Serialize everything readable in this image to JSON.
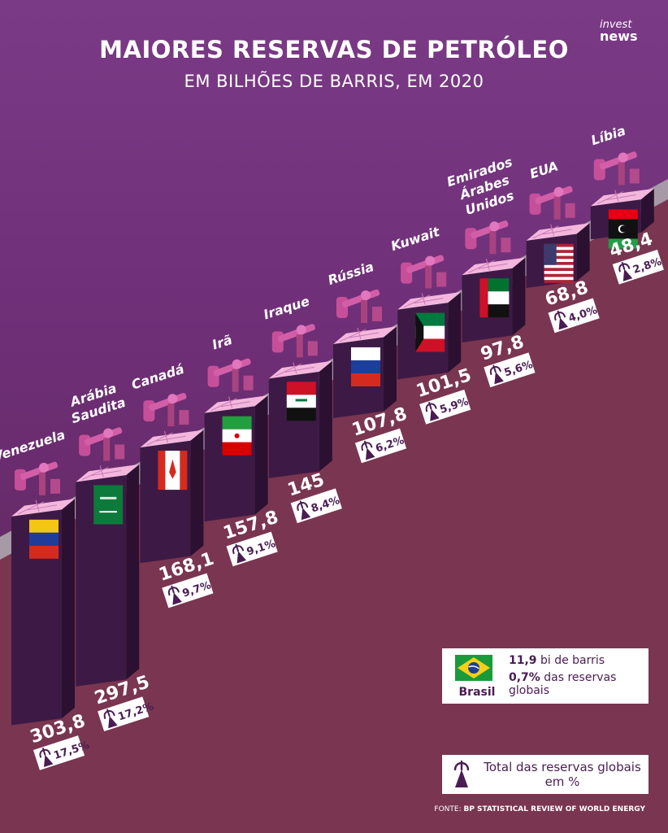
{
  "header": {
    "title": "MAIORES RESERVAS DE PETRÓLEO",
    "subtitle": "EM BILHÕES DE BARRIS, EM 2020",
    "logo_line1": "invest",
    "logo_line2": "news"
  },
  "chart_data": {
    "type": "bar",
    "title": "MAIORES RESERVAS DE PETRÓLEO",
    "subtitle": "EM BILHÕES DE BARRIS, EM 2020",
    "categories": [
      "Venezuela",
      "Arábia Saudita",
      "Canadá",
      "Irã",
      "Iraque",
      "Rússia",
      "Kuwait",
      "Emirados Árabes Unidos",
      "EUA",
      "Líbia"
    ],
    "values": [
      303.8,
      297.5,
      168.1,
      157.8,
      145,
      107.8,
      101.5,
      97.8,
      68.8,
      48.4
    ],
    "value_labels": [
      "303,8",
      "297,5",
      "168,1",
      "157,8",
      "145",
      "107,8",
      "101,5",
      "97,8",
      "68,8",
      "48,4"
    ],
    "share_labels": [
      "17,5%",
      "17,2%",
      "9,7%",
      "9,1%",
      "8,4%",
      "6,2%",
      "5,9%",
      "5,6%",
      "4,0%",
      "2,8%"
    ],
    "label_lines": [
      [
        "Venezuela"
      ],
      [
        "Arábia",
        "Saudita"
      ],
      [
        "Canadá"
      ],
      [
        "Irã"
      ],
      [
        "Iraque"
      ],
      [
        "Rússia"
      ],
      [
        "Kuwait"
      ],
      [
        "Emirados",
        "Árabes",
        "Unidos"
      ],
      [
        "EUA"
      ],
      [
        "Líbia"
      ]
    ],
    "flags": [
      "venezuela",
      "saudi-arabia",
      "canada",
      "iran",
      "iraq",
      "russia",
      "kuwait",
      "uae",
      "usa",
      "libya"
    ],
    "colors": {
      "bar_front": "#3d1a45",
      "bar_side": "#2b1031",
      "bar_top": "#f3b7dd",
      "pump": "#c74f9a"
    }
  },
  "brasil": {
    "name": "Brasil",
    "reserves_value": "11,9",
    "reserves_unit": " bi de barris",
    "share_value": "0,7%",
    "share_text": " das reservas globais"
  },
  "legend": {
    "total_label": "Total das reservas globais em %"
  },
  "source": {
    "prefix": "FONTE: ",
    "name": "BP STATISTICAL REVIEW OF WORLD ENERGY"
  }
}
